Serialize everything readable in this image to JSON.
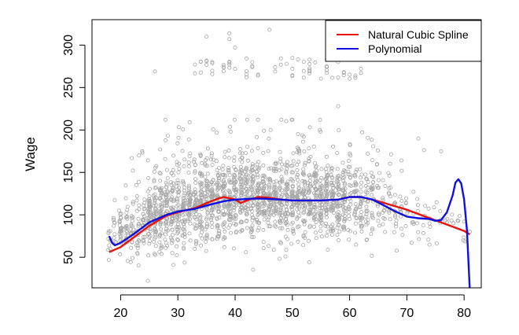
{
  "chart_data": {
    "type": "scatter",
    "xlabel": "",
    "ylabel": "Wage",
    "xlim": [
      15,
      83
    ],
    "ylim": [
      14,
      330
    ],
    "x_ticks": [
      20,
      30,
      40,
      50,
      60,
      70,
      80
    ],
    "y_ticks": [
      50,
      100,
      150,
      200,
      250,
      300
    ],
    "x_tick_labels": [
      "20",
      "30",
      "40",
      "50",
      "60",
      "70",
      "80"
    ],
    "y_tick_labels": [
      "50",
      "100",
      "150",
      "200",
      "250",
      "300"
    ],
    "grid": false,
    "legend_position": "top-right",
    "point_color": "#a6a6a6",
    "scatter_summary_by_age": [
      {
        "age": 18,
        "center": 75,
        "spread": 25
      },
      {
        "age": 20,
        "center": 80,
        "spread": 30
      },
      {
        "age": 22,
        "center": 85,
        "spread": 35
      },
      {
        "age": 25,
        "center": 95,
        "spread": 38
      },
      {
        "age": 30,
        "center": 105,
        "spread": 40
      },
      {
        "age": 35,
        "center": 112,
        "spread": 40
      },
      {
        "age": 40,
        "center": 118,
        "spread": 40
      },
      {
        "age": 45,
        "center": 118,
        "spread": 40
      },
      {
        "age": 50,
        "center": 117,
        "spread": 40
      },
      {
        "age": 55,
        "center": 117,
        "spread": 40
      },
      {
        "age": 60,
        "center": 118,
        "spread": 40
      },
      {
        "age": 65,
        "center": 112,
        "spread": 40
      },
      {
        "age": 70,
        "center": 100,
        "spread": 30
      },
      {
        "age": 75,
        "center": 95,
        "spread": 25
      },
      {
        "age": 80,
        "center": 90,
        "spread": 20
      }
    ],
    "high_earners_cluster": {
      "age_range": [
        33,
        62
      ],
      "wage_range": [
        260,
        285
      ]
    },
    "notable_points": [
      {
        "x": 46,
        "y": 318
      },
      {
        "x": 39,
        "y": 314
      },
      {
        "x": 35,
        "y": 310
      },
      {
        "x": 39,
        "y": 307
      },
      {
        "x": 40,
        "y": 297
      },
      {
        "x": 58,
        "y": 289
      },
      {
        "x": 26,
        "y": 269
      },
      {
        "x": 58,
        "y": 228
      },
      {
        "x": 50,
        "y": 212
      },
      {
        "x": 72,
        "y": 190
      },
      {
        "x": 76,
        "y": 175
      },
      {
        "x": 80,
        "y": 92
      },
      {
        "x": 81,
        "y": 80
      }
    ],
    "series": [
      {
        "name": "Natural Cubic Spline",
        "color": "#e8140c",
        "x": [
          18,
          20,
          22,
          25,
          28,
          30,
          33,
          35,
          37,
          38,
          40,
          41,
          42,
          44,
          46,
          48,
          50,
          52,
          55,
          58,
          60,
          62,
          64,
          66,
          68,
          70,
          72,
          74,
          76,
          78,
          80,
          81
        ],
        "y": [
          56,
          62,
          72,
          87,
          99,
          103,
          108,
          114,
          119,
          121,
          118,
          114,
          117,
          121,
          120,
          118,
          117,
          117,
          117,
          118,
          121,
          121,
          118,
          114,
          110,
          106,
          101,
          96,
          91,
          86,
          81,
          77
        ]
      },
      {
        "name": "Polynomial",
        "color": "#1010e0",
        "x": [
          18,
          18.5,
          19,
          20,
          22,
          25,
          28,
          30,
          33,
          35,
          38,
          40,
          43,
          45,
          48,
          50,
          52,
          55,
          58,
          60,
          62,
          64,
          66,
          68,
          70,
          72,
          74,
          75,
          76,
          77,
          78,
          78.5,
          79,
          79.5,
          80,
          80.5,
          81
        ],
        "y": [
          75,
          67,
          64,
          67,
          76,
          91,
          100,
          104,
          107,
          111,
          116,
          118,
          119,
          119,
          118,
          117,
          117,
          117,
          118,
          121,
          121,
          118,
          111,
          104,
          98,
          96,
          95,
          93,
          94,
          103,
          123,
          138,
          142,
          137,
          118,
          82,
          12
        ]
      }
    ]
  }
}
